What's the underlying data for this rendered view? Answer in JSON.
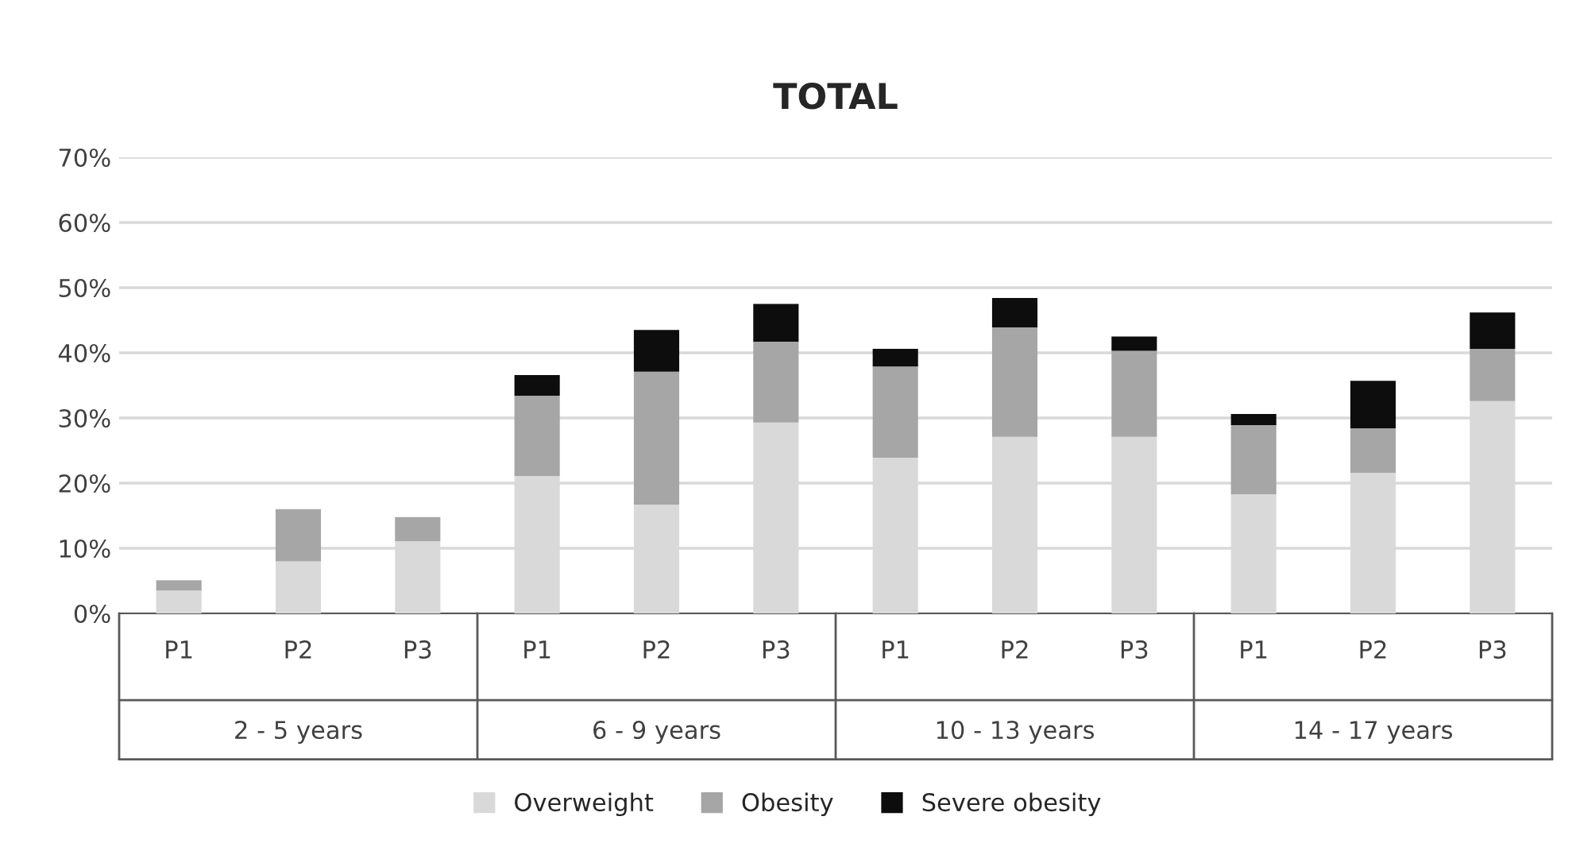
{
  "chart_data": {
    "type": "bar",
    "title": "TOTAL",
    "stacked": true,
    "categories": [
      "P1",
      "P2",
      "P3",
      "P1",
      "P2",
      "P3",
      "P1",
      "P2",
      "P3",
      "P1",
      "P2",
      "P3"
    ],
    "series": [
      {
        "name": "Overweight",
        "color": "#d9d9d9",
        "values": [
          3.5,
          8.0,
          11.1,
          21.1,
          16.7,
          29.3,
          23.9,
          27.1,
          27.1,
          18.3,
          21.6,
          32.6
        ]
      },
      {
        "name": "Obesity",
        "color": "#a6a6a6",
        "values": [
          1.6,
          8.0,
          3.7,
          12.3,
          20.4,
          12.4,
          14.0,
          16.8,
          13.2,
          10.6,
          6.8,
          8.0
        ]
      },
      {
        "name": "Severe obesity",
        "color": "#0d0d0d",
        "values": [
          null,
          null,
          null,
          3.2,
          6.4,
          5.8,
          2.7,
          4.5,
          2.2,
          1.7,
          7.3,
          5.6
        ]
      }
    ],
    "annotations": [
      "2 - 5 years",
      "6 - 9 years",
      "10 - 13 years",
      "14 - 17 years"
    ],
    "ylim": [
      0,
      70
    ],
    "yticks": [
      {
        "value": 0,
        "label": "0%"
      },
      {
        "value": 10,
        "label": "10%"
      },
      {
        "value": 20,
        "label": "20%"
      },
      {
        "value": 30,
        "label": "30%"
      },
      {
        "value": 40,
        "label": "40%"
      },
      {
        "value": 50,
        "label": "50%"
      },
      {
        "value": 60,
        "label": "60%"
      },
      {
        "value": 70,
        "label": "70%"
      }
    ],
    "grid": "y",
    "legend": "bottom"
  }
}
